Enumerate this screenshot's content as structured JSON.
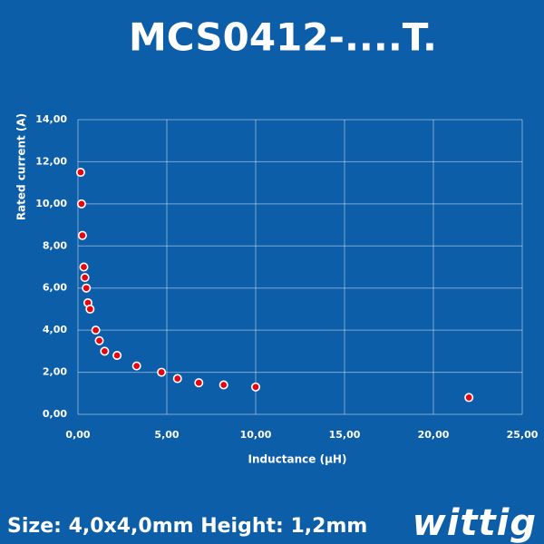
{
  "chart_data": {
    "type": "scatter",
    "title": "MCS0412-....T.",
    "x_label": "Inductance (µH)",
    "y_label": "Rated current (A)",
    "series": [
      {
        "color": "#e30613",
        "x": [
          0.15,
          0.2,
          0.25,
          0.33,
          0.39,
          0.47,
          0.56,
          0.68,
          1.0,
          1.2,
          1.5,
          2.2,
          3.3,
          4.7,
          5.6,
          6.8,
          8.2,
          10.0,
          22.0
        ],
        "values": [
          11.5,
          10.0,
          8.5,
          7.0,
          6.5,
          6.0,
          5.3,
          5.0,
          4.0,
          3.5,
          3.0,
          2.8,
          2.3,
          2.0,
          1.7,
          1.5,
          1.4,
          1.3,
          0.8
        ]
      }
    ],
    "xlim": [
      0,
      25
    ],
    "xticks": [
      {
        "value": 0,
        "label": "0,00"
      },
      {
        "value": 5,
        "label": "5,00"
      },
      {
        "value": 10,
        "label": "10,00"
      },
      {
        "value": 15,
        "label": "15,00"
      },
      {
        "value": 20,
        "label": "20,00"
      },
      {
        "value": 25,
        "label": "25,00"
      }
    ],
    "ylim": [
      0,
      14
    ],
    "yticks": [
      {
        "value": 0,
        "label": "0,00"
      },
      {
        "value": 2,
        "label": "2,00"
      },
      {
        "value": 4,
        "label": "4,00"
      },
      {
        "value": 6,
        "label": "6,00"
      },
      {
        "value": 8,
        "label": "8,00"
      },
      {
        "value": 10,
        "label": "10,00"
      },
      {
        "value": 12,
        "label": "12,00"
      },
      {
        "value": 14,
        "label": "14,00"
      }
    ],
    "grid": true
  },
  "footer": {
    "text": "Size: 4,0x4,0mm Height: 1,2mm",
    "logo": "wittig"
  }
}
